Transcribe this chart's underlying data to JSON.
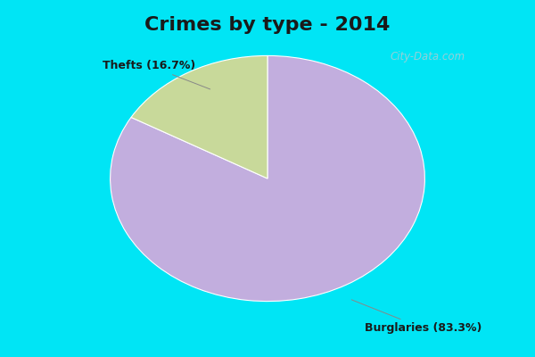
{
  "title": "Crimes by type - 2014",
  "slices": [
    {
      "label": "Burglaries",
      "pct": 83.3,
      "color": "#c2aede"
    },
    {
      "label": "Thefts",
      "pct": 16.7,
      "color": "#c8d99a"
    }
  ],
  "bg_cyan": "#00e5f5",
  "bg_inner": "#e8f5ec",
  "title_fontsize": 16,
  "label_fontsize": 9,
  "watermark": "City-Data.com",
  "label_color": "#1a1a1a",
  "title_color": "#1a1a1a"
}
